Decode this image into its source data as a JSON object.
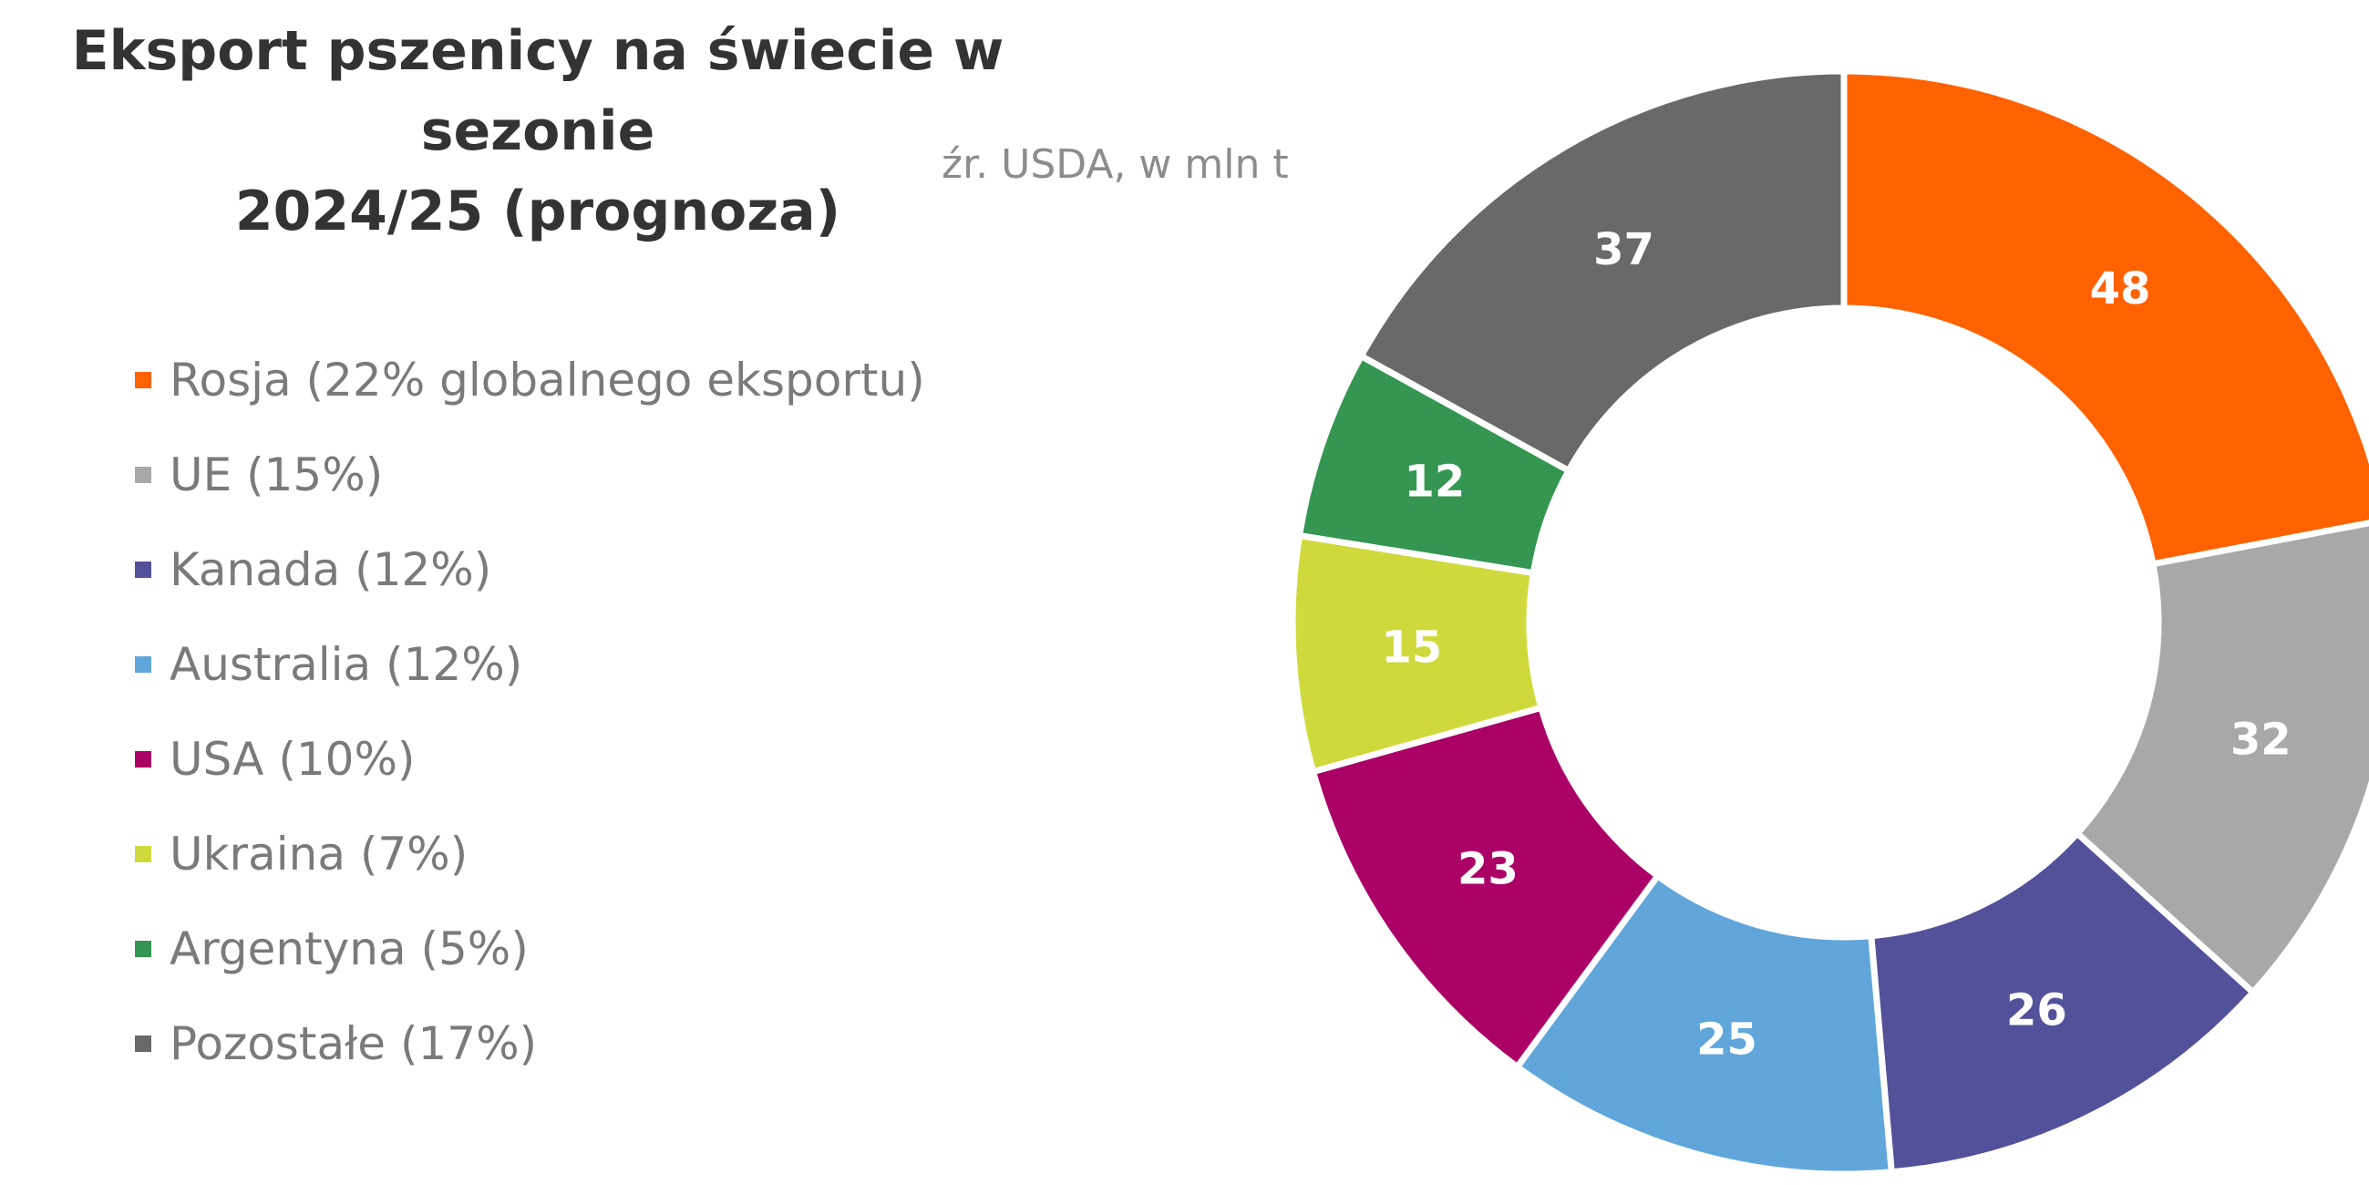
{
  "title_line1": "Eksport pszenicy na świecie w sezonie",
  "title_line2": "2024/25 (prognoza)",
  "subtitle": "źr. USDA, w mln t",
  "chart_data": {
    "type": "pie",
    "subtype": "donut",
    "title": "Eksport pszenicy na świecie w sezonie 2024/25 (prognoza)",
    "subtitle": "źr. USDA, w mln t",
    "legend_position": "left",
    "categories": [
      "Rosja",
      "UE",
      "Kanada",
      "Australia",
      "USA",
      "Ukraina",
      "Argentyna",
      "Pozostałe"
    ],
    "values": [
      48,
      32,
      26,
      25,
      23,
      15,
      12,
      37
    ],
    "legend_labels": [
      "Rosja (22% globalnego eksportu)",
      "UE (15%)",
      "Kanada (12%)",
      "Australia (12%)",
      "USA (10%)",
      "Ukraina (7%)",
      "Argentyna (5%)",
      "Pozostałe (17%)"
    ],
    "colors": [
      "#ff6200",
      "#a8a8a8",
      "#525199",
      "#60a6da",
      "#ab0066",
      "#d0d93c",
      "#349651",
      "#696969"
    ]
  }
}
